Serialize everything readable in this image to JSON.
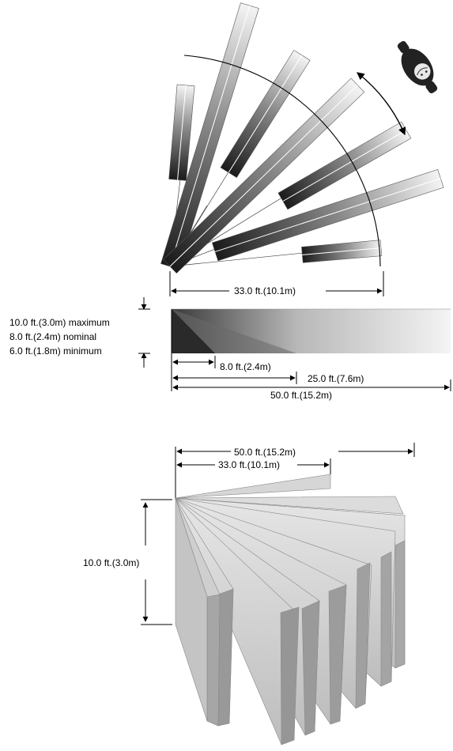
{
  "top_view": {
    "width_label": "33.0 ft.(10.1m)"
  },
  "side_view": {
    "height_max_label": "10.0 ft.(3.0m) maximum",
    "height_nom_label": "8.0 ft.(2.4m) nominal",
    "height_min_label": "6.0 ft.(1.8m) minimum",
    "dist_1_label": "8.0 ft.(2.4m)",
    "dist_2_label": "25.0 ft.(7.6m)",
    "dist_3_label": "50.0 ft.(15.2m)"
  },
  "perspective_view": {
    "range_label": "50.0 ft.(15.2m)",
    "width_label": "33.0 ft.(10.1m)",
    "height_label": "10.0 ft.(3.0m)"
  },
  "colors": {
    "ink": "#000000",
    "zone_dark": "#222222",
    "zone_light": "#f2f2f2",
    "panel_face": "#c8c8c8",
    "panel_edge": "#9a9a9a"
  }
}
